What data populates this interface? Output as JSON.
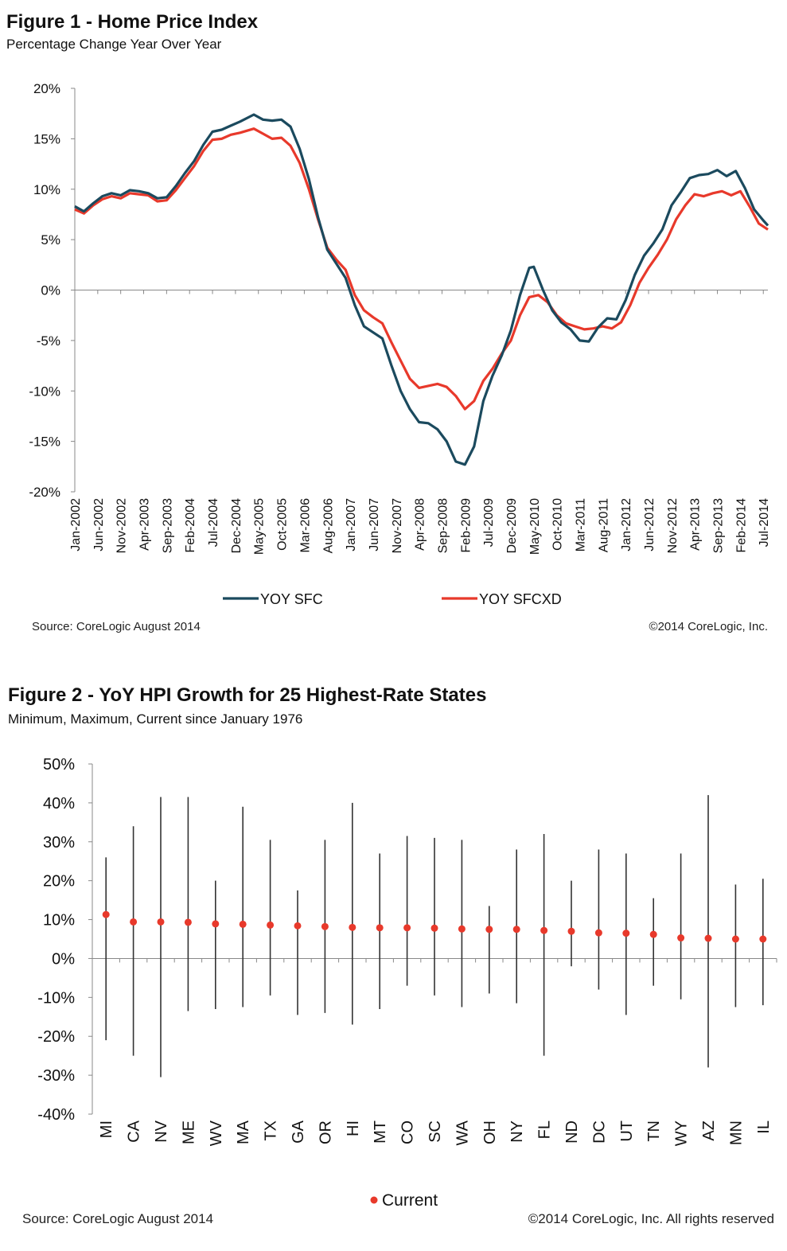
{
  "figure1": {
    "title": "Figure 1 - Home Price Index",
    "subtitle": "Percentage Change Year Over Year",
    "source": "Source: CoreLogic  August 2014",
    "copyright": "©2014 CoreLogic, Inc.",
    "colors": {
      "sfc": "#1b4a5e",
      "sfcxd": "#e8392b"
    },
    "chart_data": {
      "type": "line",
      "title": "Figure 1 - Home Price Index",
      "subtitle": "Percentage Change Year Over Year",
      "xlabel": "",
      "ylabel": "",
      "ylim": [
        -20,
        20
      ],
      "yticks": [
        20,
        15,
        10,
        5,
        0,
        -5,
        -10,
        -15,
        -20
      ],
      "ytick_labels": [
        "20%",
        "15%",
        "10%",
        "5%",
        "0%",
        "-5%",
        "-10%",
        "-15%",
        "-20%"
      ],
      "x_range": [
        "Jan-2002",
        "Aug-2014"
      ],
      "x_tick_labels": [
        "Jan-2002",
        "Jun-2002",
        "Nov-2002",
        "Apr-2003",
        "Sep-2003",
        "Feb-2004",
        "Jul-2004",
        "Dec-2004",
        "May-2005",
        "Oct-2005",
        "Mar-2006",
        "Aug-2006",
        "Jan-2007",
        "Jun-2007",
        "Nov-2007",
        "Apr-2008",
        "Sep-2008",
        "Feb-2009",
        "Jul-2009",
        "Dec-2009",
        "May-2010",
        "Oct-2010",
        "Mar-2011",
        "Aug-2011",
        "Jan-2012",
        "Jun-2012",
        "Nov-2012",
        "Apr-2013",
        "Sep-2013",
        "Feb-2014",
        "Jul-2014"
      ],
      "legend": "bottom",
      "grid": false,
      "series": [
        {
          "name": "YOY SFC",
          "points": [
            [
              "Jan-2002",
              8.3
            ],
            [
              "Mar-2002",
              7.8
            ],
            [
              "May-2002",
              8.6
            ],
            [
              "Jul-2002",
              9.3
            ],
            [
              "Sep-2002",
              9.6
            ],
            [
              "Nov-2002",
              9.4
            ],
            [
              "Jan-2003",
              9.9
            ],
            [
              "Mar-2003",
              9.8
            ],
            [
              "May-2003",
              9.6
            ],
            [
              "Jul-2003",
              9.1
            ],
            [
              "Sep-2003",
              9.2
            ],
            [
              "Nov-2003",
              10.3
            ],
            [
              "Jan-2004",
              11.6
            ],
            [
              "Mar-2004",
              12.8
            ],
            [
              "May-2004",
              14.4
            ],
            [
              "Jul-2004",
              15.7
            ],
            [
              "Sep-2004",
              15.9
            ],
            [
              "Nov-2004",
              16.3
            ],
            [
              "Jan-2005",
              16.7
            ],
            [
              "Apr-2005",
              17.4
            ],
            [
              "Jun-2005",
              16.9
            ],
            [
              "Aug-2005",
              16.8
            ],
            [
              "Oct-2005",
              16.9
            ],
            [
              "Dec-2005",
              16.2
            ],
            [
              "Feb-2006",
              14.0
            ],
            [
              "Apr-2006",
              11.0
            ],
            [
              "Jun-2006",
              7.2
            ],
            [
              "Aug-2006",
              4.0
            ],
            [
              "Oct-2006",
              2.6
            ],
            [
              "Dec-2006",
              1.2
            ],
            [
              "Feb-2007",
              -1.5
            ],
            [
              "Apr-2007",
              -3.6
            ],
            [
              "Jun-2007",
              -4.2
            ],
            [
              "Aug-2007",
              -4.8
            ],
            [
              "Oct-2007",
              -7.5
            ],
            [
              "Dec-2007",
              -10.0
            ],
            [
              "Feb-2008",
              -11.8
            ],
            [
              "Apr-2008",
              -13.1
            ],
            [
              "Jun-2008",
              -13.2
            ],
            [
              "Aug-2008",
              -13.8
            ],
            [
              "Oct-2008",
              -15.0
            ],
            [
              "Dec-2008",
              -17.0
            ],
            [
              "Feb-2009",
              -17.3
            ],
            [
              "Apr-2009",
              -15.5
            ],
            [
              "Jun-2009",
              -11.0
            ],
            [
              "Aug-2009",
              -8.5
            ],
            [
              "Oct-2009",
              -6.5
            ],
            [
              "Dec-2009",
              -4.0
            ],
            [
              "Feb-2010",
              -0.5
            ],
            [
              "Apr-2010",
              2.2
            ],
            [
              "May-2010",
              2.3
            ],
            [
              "Jul-2010",
              0.0
            ],
            [
              "Sep-2010",
              -2.0
            ],
            [
              "Nov-2010",
              -3.2
            ],
            [
              "Jan-2011",
              -3.9
            ],
            [
              "Mar-2011",
              -5.0
            ],
            [
              "May-2011",
              -5.1
            ],
            [
              "Jul-2011",
              -3.7
            ],
            [
              "Sep-2011",
              -2.8
            ],
            [
              "Nov-2011",
              -2.9
            ],
            [
              "Jan-2012",
              -1.0
            ],
            [
              "Mar-2012",
              1.5
            ],
            [
              "May-2012",
              3.4
            ],
            [
              "Jul-2012",
              4.6
            ],
            [
              "Sep-2012",
              6.0
            ],
            [
              "Nov-2012",
              8.4
            ],
            [
              "Jan-2013",
              9.7
            ],
            [
              "Mar-2013",
              11.1
            ],
            [
              "May-2013",
              11.4
            ],
            [
              "Jul-2013",
              11.5
            ],
            [
              "Sep-2013",
              11.9
            ],
            [
              "Nov-2013",
              11.3
            ],
            [
              "Jan-2014",
              11.8
            ],
            [
              "Mar-2014",
              10.1
            ],
            [
              "May-2014",
              8.0
            ],
            [
              "Jul-2014",
              6.9
            ],
            [
              "Aug-2014",
              6.4
            ]
          ]
        },
        {
          "name": "YOY SFCXD",
          "points": [
            [
              "Jan-2002",
              8.0
            ],
            [
              "Mar-2002",
              7.6
            ],
            [
              "May-2002",
              8.4
            ],
            [
              "Jul-2002",
              9.0
            ],
            [
              "Sep-2002",
              9.3
            ],
            [
              "Nov-2002",
              9.1
            ],
            [
              "Jan-2003",
              9.6
            ],
            [
              "Mar-2003",
              9.5
            ],
            [
              "May-2003",
              9.4
            ],
            [
              "Jul-2003",
              8.8
            ],
            [
              "Sep-2003",
              8.9
            ],
            [
              "Nov-2003",
              9.9
            ],
            [
              "Jan-2004",
              11.1
            ],
            [
              "Mar-2004",
              12.3
            ],
            [
              "May-2004",
              13.8
            ],
            [
              "Jul-2004",
              14.9
            ],
            [
              "Sep-2004",
              15.0
            ],
            [
              "Nov-2004",
              15.4
            ],
            [
              "Jan-2005",
              15.6
            ],
            [
              "Apr-2005",
              16.0
            ],
            [
              "Jun-2005",
              15.5
            ],
            [
              "Aug-2005",
              15.0
            ],
            [
              "Oct-2005",
              15.1
            ],
            [
              "Dec-2005",
              14.3
            ],
            [
              "Feb-2006",
              12.6
            ],
            [
              "Apr-2006",
              10.0
            ],
            [
              "Jun-2006",
              7.0
            ],
            [
              "Aug-2006",
              4.2
            ],
            [
              "Oct-2006",
              3.0
            ],
            [
              "Dec-2006",
              2.0
            ],
            [
              "Feb-2007",
              -0.5
            ],
            [
              "Apr-2007",
              -2.0
            ],
            [
              "Jun-2007",
              -2.7
            ],
            [
              "Aug-2007",
              -3.3
            ],
            [
              "Oct-2007",
              -5.2
            ],
            [
              "Dec-2007",
              -7.0
            ],
            [
              "Feb-2008",
              -8.8
            ],
            [
              "Apr-2008",
              -9.7
            ],
            [
              "Jun-2008",
              -9.5
            ],
            [
              "Aug-2008",
              -9.3
            ],
            [
              "Oct-2008",
              -9.6
            ],
            [
              "Dec-2008",
              -10.5
            ],
            [
              "Feb-2009",
              -11.8
            ],
            [
              "Apr-2009",
              -11.0
            ],
            [
              "Jun-2009",
              -9.0
            ],
            [
              "Aug-2009",
              -7.8
            ],
            [
              "Oct-2009",
              -6.3
            ],
            [
              "Dec-2009",
              -5.0
            ],
            [
              "Feb-2010",
              -2.5
            ],
            [
              "Apr-2010",
              -0.7
            ],
            [
              "Jun-2010",
              -0.5
            ],
            [
              "Aug-2010",
              -1.2
            ],
            [
              "Oct-2010",
              -2.5
            ],
            [
              "Dec-2010",
              -3.3
            ],
            [
              "Feb-2011",
              -3.6
            ],
            [
              "Apr-2011",
              -3.9
            ],
            [
              "Jun-2011",
              -3.8
            ],
            [
              "Aug-2011",
              -3.6
            ],
            [
              "Oct-2011",
              -3.8
            ],
            [
              "Dec-2011",
              -3.2
            ],
            [
              "Feb-2012",
              -1.5
            ],
            [
              "Apr-2012",
              0.7
            ],
            [
              "Jun-2012",
              2.2
            ],
            [
              "Aug-2012",
              3.5
            ],
            [
              "Oct-2012",
              5.0
            ],
            [
              "Dec-2012",
              7.0
            ],
            [
              "Feb-2013",
              8.4
            ],
            [
              "Apr-2013",
              9.5
            ],
            [
              "Jun-2013",
              9.3
            ],
            [
              "Aug-2013",
              9.6
            ],
            [
              "Oct-2013",
              9.8
            ],
            [
              "Dec-2013",
              9.4
            ],
            [
              "Feb-2014",
              9.8
            ],
            [
              "Apr-2014",
              8.3
            ],
            [
              "Jun-2014",
              6.6
            ],
            [
              "Aug-2014",
              6.0
            ]
          ]
        }
      ]
    }
  },
  "figure2": {
    "title": "Figure 2 - YoY HPI Growth for 25 Highest-Rate States",
    "subtitle": "Minimum, Maximum, Current since January 1976",
    "source": "Source: CoreLogic  August 2014",
    "copyright": "©2014 CoreLogic, Inc. All rights reserved",
    "colors": {
      "range": "#333333",
      "current": "#e8392b"
    },
    "chart_data": {
      "type": "scatter",
      "title": "Figure 2 - YoY HPI Growth for 25 Highest-Rate States",
      "subtitle": "Minimum, Maximum, Current since January 1976",
      "xlabel": "",
      "ylabel": "",
      "ylim": [
        -40,
        50
      ],
      "yticks": [
        50,
        40,
        30,
        20,
        10,
        0,
        -10,
        -20,
        -30,
        -40
      ],
      "ytick_labels": [
        "50%",
        "40%",
        "30%",
        "20%",
        "10%",
        "0%",
        "-10%",
        "-20%",
        "-30%",
        "-40%"
      ],
      "legend": "bottom",
      "grid": false,
      "categories": [
        "MI",
        "CA",
        "NV",
        "ME",
        "WV",
        "MA",
        "TX",
        "GA",
        "OR",
        "HI",
        "MT",
        "CO",
        "SC",
        "WA",
        "OH",
        "NY",
        "FL",
        "ND",
        "DC",
        "UT",
        "TN",
        "WY",
        "AZ",
        "MN",
        "IL"
      ],
      "series": [
        {
          "name": "Maximum",
          "values": [
            26,
            34,
            41.5,
            41.5,
            20,
            39,
            30.5,
            17.5,
            30.5,
            40,
            27,
            31.5,
            31,
            30.5,
            13.5,
            28,
            32,
            20,
            28,
            27,
            15.5,
            27,
            42,
            19,
            20.5
          ]
        },
        {
          "name": "Minimum",
          "values": [
            -21,
            -25,
            -30.5,
            -13.5,
            -13,
            -12.5,
            -9.5,
            -14.5,
            -14,
            -17,
            -13,
            -7,
            -9.5,
            -12.5,
            -9,
            -11.5,
            -25,
            -2,
            -8,
            -14.5,
            -7,
            -10.5,
            -28,
            -12.5,
            -12
          ]
        },
        {
          "name": "Current",
          "values": [
            11.3,
            9.4,
            9.4,
            9.3,
            8.9,
            8.8,
            8.6,
            8.4,
            8.2,
            8.0,
            7.9,
            7.9,
            7.8,
            7.6,
            7.5,
            7.5,
            7.2,
            7.0,
            6.6,
            6.5,
            6.2,
            5.3,
            5.2,
            5.0,
            5.0
          ]
        }
      ],
      "legend_label": "Current"
    }
  }
}
